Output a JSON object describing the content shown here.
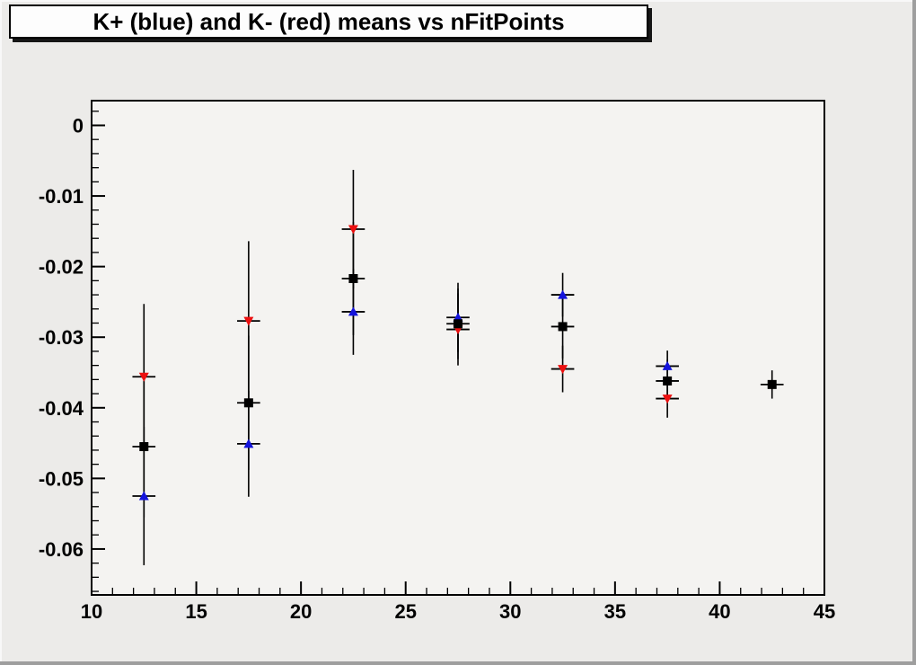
{
  "window": {
    "canvas_bg": "#ecebe9",
    "frame_bg": "#f4f3f1",
    "axis_color": "#000000",
    "error_bar_color": "#000000"
  },
  "title": {
    "text": "K+ (blue) and K- (red) means vs nFitPoints"
  },
  "chart_data": {
    "type": "scatter",
    "title": "K+ (blue) and K- (red) means vs nFitPoints",
    "xlabel": "",
    "ylabel": "",
    "grid": false,
    "legend": "none (colors identified in title)",
    "xlim": [
      10,
      45
    ],
    "ylim": [
      -0.0665,
      0.0035
    ],
    "x_ticks": {
      "major": [
        10,
        15,
        20,
        25,
        30,
        35,
        40,
        45
      ],
      "labels": [
        "10",
        "15",
        "20",
        "25",
        "30",
        "35",
        "40",
        "45"
      ],
      "minor_step": 1
    },
    "y_ticks": {
      "major": [
        0,
        -0.01,
        -0.02,
        -0.03,
        -0.04,
        -0.05,
        -0.06
      ],
      "labels": [
        "0",
        "-0.01",
        "-0.02",
        "-0.03",
        "-0.04",
        "-0.05",
        "-0.06"
      ],
      "minor_step": 0.002
    },
    "series": [
      {
        "name": "K+ (blue)",
        "marker": "triangle-up",
        "color": "#1414dc",
        "x": [
          12.5,
          17.5,
          22.5,
          27.5,
          32.5,
          37.5
        ],
        "y": [
          -0.0525,
          -0.0451,
          -0.0264,
          -0.0272,
          -0.024,
          -0.0341
        ],
        "ey": [
          0.0098,
          0.0075,
          0.0061,
          0.0049,
          0.0031,
          0.0022
        ],
        "ex": 0.55
      },
      {
        "name": "K- (red)",
        "marker": "triangle-down",
        "color": "#ec1010",
        "x": [
          12.5,
          17.5,
          22.5,
          27.5,
          32.5,
          37.5
        ],
        "y": [
          -0.0356,
          -0.0277,
          -0.0147,
          -0.0289,
          -0.0345,
          -0.0387
        ],
        "ey": [
          0.0103,
          0.0113,
          0.0084,
          0.0051,
          0.0033,
          0.0027
        ],
        "ex": 0.55
      },
      {
        "name": "black squares",
        "marker": "square",
        "color": "#000000",
        "x": [
          12.5,
          17.5,
          22.5,
          27.5,
          32.5,
          37.5,
          42.5
        ],
        "y": [
          -0.0455,
          -0.0393,
          -0.0217,
          -0.0281,
          -0.0285,
          -0.0362,
          -0.0367
        ],
        "ey": [
          0.01,
          0.0095,
          0.008,
          0.005,
          0.0045,
          0.003,
          0.002
        ],
        "ex": 0.55
      }
    ]
  }
}
